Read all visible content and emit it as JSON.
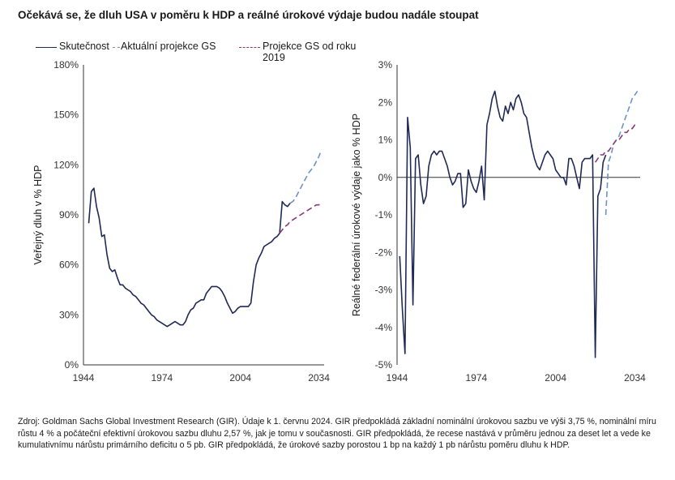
{
  "title": "Očekává se, že dluh USA v poměru k HDP a reálné úrokové výdaje budou nadále stoupat",
  "legend": [
    {
      "label": "Skutečnost",
      "color": "#1f2a55",
      "style": "solid"
    },
    {
      "label": "Aktuální projekce GS",
      "color": "#6b93c4",
      "style": "dashed"
    },
    {
      "label": "Projekce GS od roku 2019",
      "color": "#8a3a7a",
      "style": "dashed"
    }
  ],
  "footnote": "Zdroj: Goldman Sachs Global Investment Research (GIR). Údaje k 1. červnu 2024. GIR předpokládá základní nominální úrokovou sazbu ve výši 3,75 %, nominální míru růstu 4 % a počáteční efektivní úrokovou sazbu dluhu 2,57 %, jak je tomu v současnosti. GIR předpokládá, že recese nastává v průměru jednou za deset let a vede ke kumulativnímu nárůstu primárního deficitu o 5 pb. GIR předpokládá, že úrokové sazby porostou 1 bp na každý 1 pb nárůstu poměru dluhu k HDP.",
  "chart_data": [
    {
      "type": "line",
      "ylabel": "Veřejný dluh v % HDP",
      "ylim": [
        0,
        180
      ],
      "yticks": [
        0,
        30,
        60,
        90,
        120,
        150,
        180
      ],
      "ytick_labels": [
        "0%",
        "30%",
        "60%",
        "90%",
        "120%",
        "150%",
        "180%"
      ],
      "xlim": [
        1944,
        2036
      ],
      "xticks": [
        1944,
        1974,
        2004,
        2034
      ],
      "grid": false,
      "series": [
        {
          "name": "Skutečnost",
          "color": "#1f2a55",
          "dash": false,
          "x": [
            1946,
            1947,
            1948,
            1949,
            1950,
            1951,
            1952,
            1953,
            1954,
            1955,
            1956,
            1957,
            1958,
            1959,
            1960,
            1961,
            1962,
            1963,
            1964,
            1965,
            1966,
            1967,
            1968,
            1969,
            1970,
            1971,
            1972,
            1973,
            1974,
            1975,
            1976,
            1977,
            1978,
            1979,
            1980,
            1981,
            1982,
            1983,
            1984,
            1985,
            1986,
            1987,
            1988,
            1989,
            1990,
            1991,
            1992,
            1993,
            1994,
            1995,
            1996,
            1997,
            1998,
            1999,
            2000,
            2001,
            2002,
            2003,
            2004,
            2005,
            2006,
            2007,
            2008,
            2009,
            2010,
            2011,
            2012,
            2013,
            2014,
            2015,
            2016,
            2017,
            2018,
            2019,
            2020,
            2021,
            2022,
            2023
          ],
          "y": [
            85,
            104,
            106,
            95,
            88,
            77,
            78,
            66,
            58,
            56,
            57,
            52,
            48,
            48,
            46,
            45,
            44,
            42,
            41,
            39,
            37,
            36,
            34,
            32,
            30,
            29,
            27,
            26,
            25,
            24,
            23,
            24,
            25,
            26,
            25,
            24,
            24,
            26,
            30,
            33,
            34,
            37,
            38,
            39,
            39,
            43,
            45,
            47,
            47,
            47,
            46,
            44,
            41,
            37,
            34,
            31,
            32,
            34,
            35,
            35,
            35,
            35,
            37,
            50,
            60,
            64,
            67,
            71,
            72,
            73,
            74,
            76,
            77,
            79,
            98,
            96,
            95,
            97
          ]
        },
        {
          "name": "Aktuální projekce GS",
          "color": "#6b93c4",
          "dash": true,
          "x": [
            2023,
            2024,
            2025,
            2026,
            2027,
            2028,
            2029,
            2030,
            2031,
            2032,
            2033,
            2034,
            2035
          ],
          "y": [
            97,
            98,
            100,
            103,
            106,
            109,
            112,
            115,
            117,
            119,
            122,
            125,
            129
          ]
        },
        {
          "name": "Projekce GS od roku 2019",
          "color": "#8a3a7a",
          "dash": true,
          "x": [
            2019,
            2020,
            2021,
            2022,
            2023,
            2024,
            2025,
            2026,
            2027,
            2028,
            2029,
            2030,
            2031,
            2032,
            2033,
            2034,
            2035
          ],
          "y": [
            79,
            81,
            83,
            84,
            86,
            87,
            88,
            89,
            90,
            91,
            92,
            93,
            94,
            95,
            96,
            96,
            97
          ]
        }
      ]
    },
    {
      "type": "line",
      "ylabel": "Reálné federální úrokové výdaje jako % HDP",
      "ylim": [
        -5,
        3
      ],
      "yticks": [
        -5,
        -4,
        -3,
        -2,
        -1,
        0,
        1,
        2,
        3
      ],
      "ytick_labels": [
        "-5%",
        "-4%",
        "-3%",
        "-2%",
        "-1%",
        "0%",
        "1%",
        "2%",
        "3%"
      ],
      "xlim": [
        1944,
        2036
      ],
      "xticks": [
        1944,
        1974,
        2004,
        2034
      ],
      "grid": false,
      "series": [
        {
          "name": "Skutečnost",
          "color": "#1f2a55",
          "dash": false,
          "x": [
            1945,
            1946,
            1947,
            1948,
            1949,
            1950,
            1951,
            1952,
            1953,
            1954,
            1955,
            1956,
            1957,
            1958,
            1959,
            1960,
            1961,
            1962,
            1963,
            1964,
            1965,
            1966,
            1967,
            1968,
            1969,
            1970,
            1971,
            1972,
            1973,
            1974,
            1975,
            1976,
            1977,
            1978,
            1979,
            1980,
            1981,
            1982,
            1983,
            1984,
            1985,
            1986,
            1987,
            1988,
            1989,
            1990,
            1991,
            1992,
            1993,
            1994,
            1995,
            1996,
            1997,
            1998,
            1999,
            2000,
            2001,
            2002,
            2003,
            2004,
            2005,
            2006,
            2007,
            2008,
            2009,
            2010,
            2011,
            2012,
            2013,
            2014,
            2015,
            2016,
            2017,
            2018,
            2019,
            2020,
            2021,
            2022,
            2023
          ],
          "y": [
            -2.1,
            -3.5,
            -4.7,
            1.6,
            0.8,
            -3.4,
            0.5,
            0.6,
            -0.2,
            -0.7,
            -0.5,
            0.3,
            0.6,
            0.7,
            0.6,
            0.7,
            0.7,
            0.5,
            0.3,
            0.0,
            -0.2,
            -0.1,
            0.1,
            0.1,
            -0.8,
            -0.7,
            0.2,
            -0.1,
            -0.3,
            -0.4,
            -0.1,
            0.3,
            -0.6,
            1.4,
            1.7,
            2.1,
            2.3,
            1.9,
            1.6,
            1.5,
            1.9,
            1.7,
            2.0,
            1.8,
            2.1,
            2.2,
            2.0,
            1.7,
            1.6,
            1.2,
            0.8,
            0.5,
            0.3,
            0.2,
            0.4,
            0.6,
            0.7,
            0.6,
            0.5,
            0.2,
            0.1,
            0.0,
            0.0,
            -0.2,
            0.5,
            0.5,
            0.3,
            0.0,
            -0.3,
            0.4,
            0.5,
            0.5,
            0.5,
            0.6,
            -4.8,
            -0.5,
            -0.3,
            0.4,
            0.6
          ]
        },
        {
          "name": "Aktuální projekce GS",
          "color": "#6b93c4",
          "dash": true,
          "x": [
            2023,
            2024,
            2025,
            2026,
            2027,
            2028,
            2029,
            2030,
            2031,
            2032,
            2033,
            2034,
            2035
          ],
          "y": [
            -1.0,
            0.4,
            0.6,
            0.9,
            1.0,
            1.1,
            1.3,
            1.5,
            1.7,
            1.9,
            2.1,
            2.2,
            2.3
          ]
        },
        {
          "name": "Projekce GS od roku 2019",
          "color": "#8a3a7a",
          "dash": true,
          "x": [
            2019,
            2020,
            2021,
            2022,
            2023,
            2024,
            2025,
            2026,
            2027,
            2028,
            2029,
            2030,
            2031,
            2032,
            2033,
            2034,
            2035
          ],
          "y": [
            0.4,
            0.5,
            0.6,
            0.6,
            0.7,
            0.7,
            0.8,
            0.9,
            1.0,
            1.0,
            1.1,
            1.2,
            1.2,
            1.3,
            1.3,
            1.4,
            1.4
          ]
        }
      ]
    }
  ]
}
